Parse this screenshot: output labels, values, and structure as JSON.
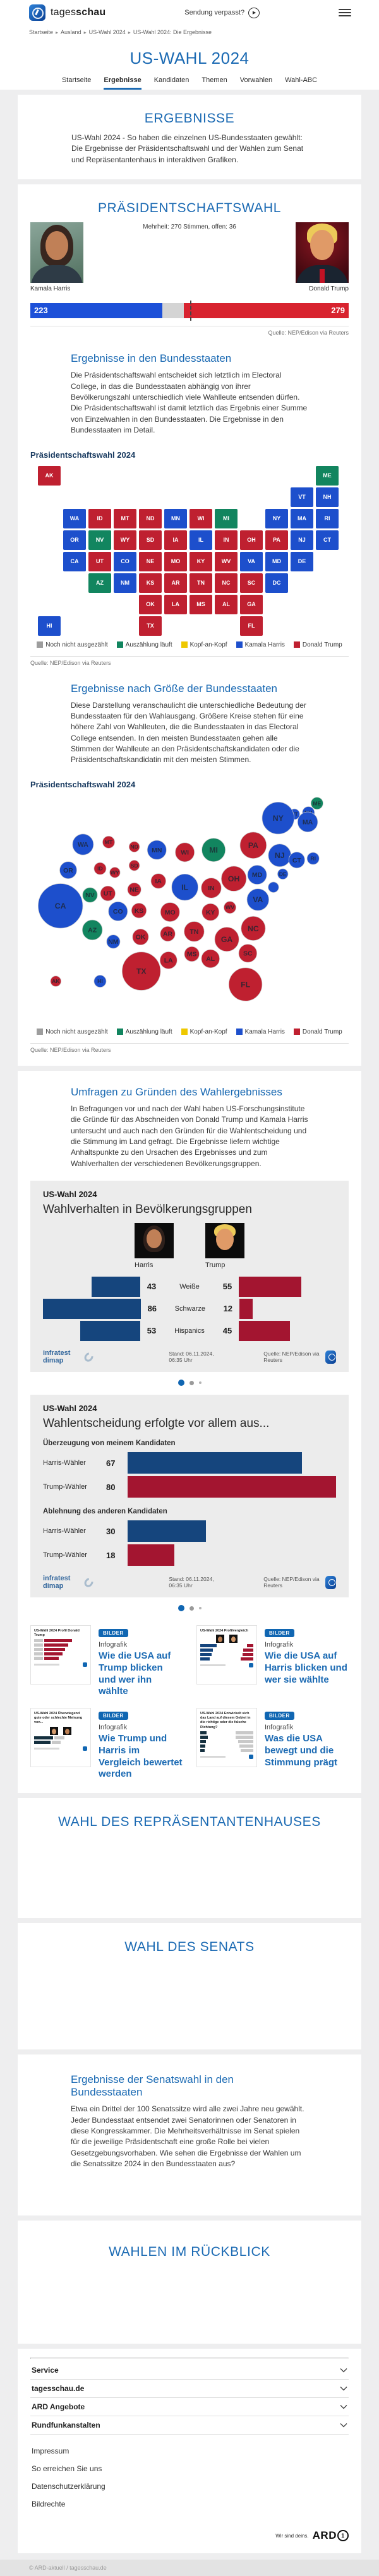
{
  "header": {
    "brand_prefix": "tages",
    "brand_suffix": "schau",
    "missed_link": "Sendung verpasst?"
  },
  "breadcrumb": {
    "items": [
      "Startseite",
      "Ausland",
      "US-Wahl 2024",
      "US-Wahl 2024: Die Ergebnisse"
    ],
    "separator": "▸"
  },
  "page": {
    "title": "US-WAHL 2024",
    "tabs": [
      {
        "label": "Startseite",
        "active": false
      },
      {
        "label": "Ergebnisse",
        "active": true
      },
      {
        "label": "Kandidaten",
        "active": false
      },
      {
        "label": "Themen",
        "active": false
      },
      {
        "label": "Vorwahlen",
        "active": false
      },
      {
        "label": "Wahl-ABC",
        "active": false
      }
    ]
  },
  "ergebnisse": {
    "heading": "ERGEBNISSE",
    "intro": "US-Wahl 2024 - So haben die einzelnen US-Bundesstaaten gewählt: Die Ergebnisse der Präsidentschaftswahl und der Wahlen zum Senat und Repräsentantenhaus in interaktiven Grafiken."
  },
  "electoral": {
    "heading": "PRÄSIDENTSCHAFTSWAHL",
    "majority_note": "Mehrheit: 270 Stimmen, offen: 36",
    "harris_name": "Kamala Harris",
    "trump_name": "Donald Trump",
    "harris_votes": 223,
    "trump_votes": 279,
    "open_votes": 36,
    "total": 538,
    "majority": 270,
    "source": "Quelle: NEP/Edison via Reuters"
  },
  "states_section": {
    "heading": "Ergebnisse in den Bundesstaaten",
    "body": "Die Präsidentschaftswahl entscheidet sich letztlich im Electoral College, in das die Bundesstaaten abhängig von ihrer Bevölkerungszahl unterschiedlich viele Wahlleute entsenden dürfen. Die Präsidentschaftswahl ist damit letztlich das Ergebnis einer Summe von Einzelwahlen in den Bundesstaaten. Die Ergebnisse in den Bundesstaaten im Detail.",
    "chart_label": "Präsidentschaftswahl 2024",
    "source": "Quelle: NEP/Edison via Reuters"
  },
  "size_section": {
    "heading": "Ergebnisse nach Größe der Bundesstaaten",
    "body": "Diese Darstellung veranschaulicht die unterschiedliche Bedeutung der Bundesstaaten für den Wahlausgang. Größere Kreise stehen für eine höhere Zahl von Wahlleuten, die die Bundesstaaten in das Electoral College entsenden. In den meisten Bundesstaaten gehen alle Stimmen der Wahlleute an den Präsidentschaftskandidaten oder die Präsidentschaftskandidatin mit den meisten Stimmen.",
    "chart_label": "Präsidentschaftswahl 2024",
    "source": "Quelle: NEP/Edison via Reuters"
  },
  "legend": [
    {
      "key": "open",
      "label": "Noch nicht ausgezählt",
      "color": "#9d9d9d"
    },
    {
      "key": "counting",
      "label": "Auszählung läuft",
      "color": "#12855f"
    },
    {
      "key": "tossup",
      "label": "Kopf-an-Kopf",
      "color": "#eec800"
    },
    {
      "key": "harris",
      "label": "Kamala Harris",
      "color": "#1d4fcc"
    },
    {
      "key": "trump",
      "label": "Donald Trump",
      "color": "#bf2030"
    }
  ],
  "umfragen": {
    "heading": "Umfragen zu Gründen des Wahlergebnisses",
    "body": "In Befragungen vor und nach der Wahl haben US-Forschungsinstitute die Gründe für das Abschneiden von Donald Trump und Kamala Harris untersucht und auch nach den Gründen für die Wahlentscheidung und die Stimmung im Land gefragt. Die Ergebnisse liefern wichtige Anhaltspunkte zu den Ursachen des Ergebnisses und zum Wahlverhalten der verschiedenen Bevölkerungsgruppen."
  },
  "chart_cards": {
    "kicker": "US-Wahl 2024",
    "demographics_title": "Wahlverhalten in Bevölkerungsgruppen",
    "decision_title": "Wahlentscheidung erfolgte vor allem aus...",
    "harris_label": "Harris",
    "trump_label": "Trump",
    "stand": "Stand:  06.11.2024, 06:35 Uhr",
    "source": "Quelle: NEP/Edison via Reuters",
    "provider": "infratest dimap"
  },
  "teasers": [
    {
      "badge": "BILDER",
      "kicker": "Infografik",
      "title": "Wie die USA auf Trump blicken und wer ihn wählte",
      "thumb_title": "US-Wahl 2024 Profil Donald Trump",
      "thumb_type": "bars-red"
    },
    {
      "badge": "BILDER",
      "kicker": "Infografik",
      "title": "Wie die USA auf Harris blicken und wer sie wählte",
      "thumb_title": "US-Wahl 2024 Profilvergleich",
      "thumb_type": "compare"
    },
    {
      "badge": "BILDER",
      "kicker": "Infografik",
      "title": "Wie Trump und Harris im Vergleich bewertet werden",
      "thumb_title": "US-Wahl 2024 Überwiegend gute oder schlechte Meinung von...",
      "thumb_type": "opinion"
    },
    {
      "badge": "BILDER",
      "kicker": "Infografik",
      "title": "Was die USA bewegt und die Stimmung prägt",
      "thumb_title": "US-Wahl 2024 Entwickelt sich das Land auf diesem Gebiet in die richtige oder die falsche Richtung?",
      "thumb_type": "mood"
    }
  ],
  "house_section": {
    "heading": "WAHL DES REPRÄSENTANTENHAUSES"
  },
  "senate_section": {
    "heading": "WAHL DES SENATS"
  },
  "senate_results": {
    "heading": "Ergebnisse der Senatswahl in den Bundesstaaten",
    "body": "Etwa ein Drittel der 100 Senatssitze wird alle zwei Jahre neu gewählt. Jeder Bundesstaat entsendet zwei Senatorinnen oder Senatoren in diese Kongresskammer. Die Mehrheitsverhältnisse im Senat spielen für die jeweilige Präsidentschaft eine große Rolle bei vielen Gesetzgebungsvorhaben. Wie sehen die Ergebnisse der Wahlen um die Senatssitze 2024 in den Bundesstaaten aus?"
  },
  "review_section": {
    "heading": "WAHLEN IM RÜCKBLICK"
  },
  "footer": {
    "accordion": [
      "Service",
      "tagesschau.de",
      "ARD Angebote",
      "Rundfunkanstalten"
    ],
    "links": [
      "Impressum",
      "So erreichen Sie uns",
      "Datenschutzerklärung",
      "Bildrechte"
    ],
    "ard_claim": "Wir sind deins.",
    "ard_brand": "ARD",
    "copyright": "© ARD-aktuell / tagesschau.de"
  },
  "colors": {
    "harris_bright": "#1d50d8",
    "trump_bright": "#d8232f",
    "open_gray": "#d4d4d4",
    "navy": "#15457d",
    "crimson": "#a31530"
  },
  "chart_data": [
    {
      "type": "bar",
      "title": "Electoral College",
      "note": "Mehrheit: 270 Stimmen, offen: 36",
      "categories": [
        "Kamala Harris",
        "offen",
        "Donald Trump"
      ],
      "values": [
        223,
        36,
        279
      ],
      "majority": 270,
      "total": 538,
      "source": "NEP/Edison via Reuters"
    },
    {
      "type": "choropleth-map",
      "title": "Präsidentschaftswahl 2024",
      "legend": [
        "Noch nicht ausgezählt",
        "Auszählung läuft",
        "Kopf-an-Kopf",
        "Kamala Harris",
        "Donald Trump"
      ],
      "results_by_state": {
        "WA": "harris",
        "OR": "harris",
        "CA": "harris",
        "NV": "counting",
        "ID": "trump",
        "MT": "trump",
        "WY": "trump",
        "UT": "trump",
        "AZ": "counting",
        "CO": "harris",
        "NM": "harris",
        "ND": "trump",
        "SD": "trump",
        "NE": "trump",
        "KS": "trump",
        "OK": "trump",
        "TX": "trump",
        "MN": "harris",
        "IA": "trump",
        "MO": "trump",
        "AR": "trump",
        "LA": "trump",
        "WI": "trump",
        "IL": "harris",
        "MS": "trump",
        "MI": "counting",
        "IN": "trump",
        "KY": "trump",
        "TN": "trump",
        "AL": "trump",
        "OH": "trump",
        "WV": "trump",
        "GA": "trump",
        "FL": "trump",
        "SC": "trump",
        "NC": "trump",
        "VA": "harris",
        "PA": "trump",
        "NY": "harris",
        "NJ": "harris",
        "VT": "harris",
        "NH": "harris",
        "ME": "counting",
        "MA": "harris",
        "CT": "harris",
        "RI": "harris",
        "DE": "harris",
        "MD": "harris",
        "DC": "harris",
        "AK": "trump",
        "HI": "harris"
      }
    },
    {
      "type": "bubble-cartogram",
      "title": "Präsidentschaftswahl 2024",
      "electoral_votes": {
        "AL": 9,
        "AK": 3,
        "AZ": 11,
        "AR": 6,
        "CA": 54,
        "CO": 10,
        "CT": 7,
        "DE": 3,
        "DC": 3,
        "FL": 30,
        "GA": 16,
        "HI": 4,
        "ID": 4,
        "IL": 19,
        "IN": 11,
        "IA": 6,
        "KS": 6,
        "KY": 8,
        "LA": 8,
        "ME": 4,
        "MD": 10,
        "MA": 11,
        "MI": 15,
        "MN": 10,
        "MS": 6,
        "MO": 10,
        "MT": 4,
        "NE": 5,
        "NV": 6,
        "NH": 4,
        "NJ": 14,
        "NM": 5,
        "NY": 28,
        "NC": 16,
        "ND": 3,
        "OH": 17,
        "OK": 7,
        "OR": 8,
        "PA": 19,
        "RI": 4,
        "SC": 9,
        "SD": 3,
        "TN": 11,
        "TX": 40,
        "UT": 6,
        "VT": 3,
        "VA": 13,
        "WA": 12,
        "WV": 4,
        "WI": 10,
        "WY": 3
      }
    },
    {
      "type": "bar",
      "title": "Wahlverhalten in Bevölkerungsgruppen",
      "categories": [
        "Weiße",
        "Schwarze",
        "Hispanics"
      ],
      "series": [
        {
          "name": "Harris",
          "values": [
            43,
            86,
            53
          ]
        },
        {
          "name": "Trump",
          "values": [
            55,
            12,
            45
          ]
        }
      ],
      "stand": "06.11.2024, 06:35 Uhr",
      "source": "NEP/Edison via Reuters"
    },
    {
      "type": "bar",
      "title": "Wahlentscheidung erfolgte vor allem aus...",
      "groups": [
        {
          "label": "Überzeugung von meinem Kandidaten",
          "rows": [
            {
              "label": "Harris-Wähler",
              "value": 67
            },
            {
              "label": "Trump-Wähler",
              "value": 80
            }
          ]
        },
        {
          "label": "Ablehnung des anderen Kandidaten",
          "rows": [
            {
              "label": "Harris-Wähler",
              "value": 30
            },
            {
              "label": "Trump-Wähler",
              "value": 18
            }
          ]
        }
      ],
      "stand": "06.11.2024, 06:35 Uhr",
      "source": "NEP/Edison via Reuters"
    }
  ]
}
